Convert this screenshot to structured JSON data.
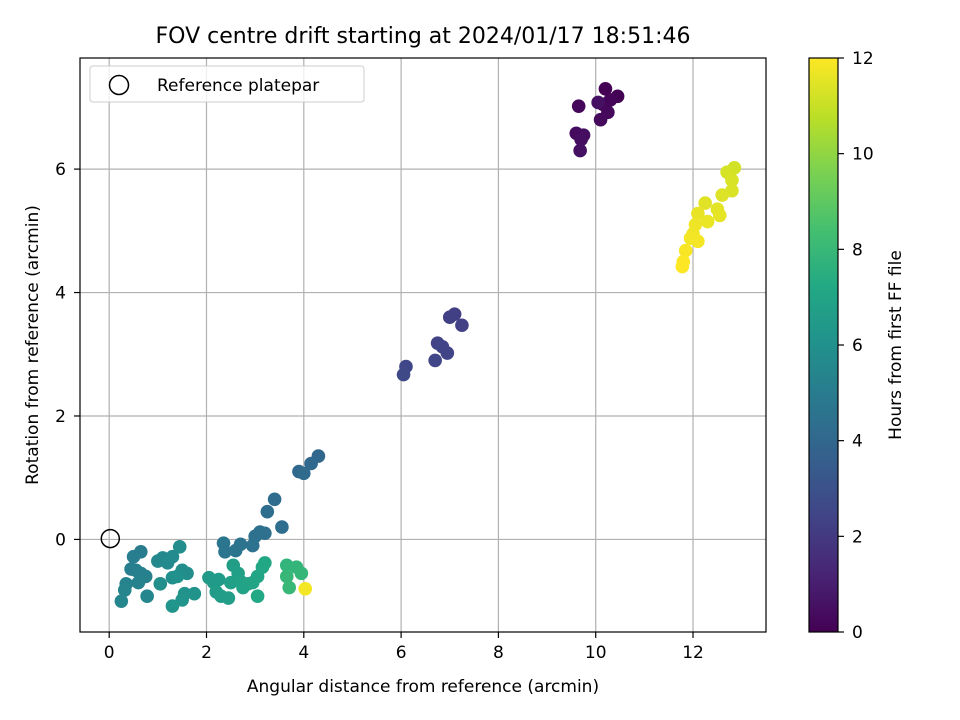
{
  "chart_data": {
    "type": "scatter",
    "title": "FOV centre drift starting at 2024/01/17 18:51:46",
    "xlabel": "Angular distance from reference (arcmin)",
    "ylabel": "Rotation from reference (arcmin)",
    "xlim": [
      -0.6,
      13.5
    ],
    "ylim": [
      -1.5,
      7.8
    ],
    "xticks": [
      0,
      2,
      4,
      6,
      8,
      10,
      12
    ],
    "yticks": [
      0,
      2,
      4,
      6
    ],
    "grid": true,
    "legend": {
      "location": "top-left",
      "entries": [
        "Reference platepar"
      ]
    },
    "reference_point": {
      "label": "Reference platepar",
      "x": 0,
      "y": 0,
      "marker": "open circle"
    },
    "colorbar": {
      "label": "Hours from first FF file",
      "colormap": "viridis",
      "range": [
        0,
        12
      ],
      "ticks": [
        0,
        2,
        4,
        6,
        8,
        10,
        12
      ]
    },
    "points": [
      {
        "x": 10.2,
        "y": 7.3,
        "c": 0.0
      },
      {
        "x": 10.45,
        "y": 7.18,
        "c": 0.05
      },
      {
        "x": 10.15,
        "y": 7.05,
        "c": 0.1
      },
      {
        "x": 10.3,
        "y": 7.12,
        "c": 0.15
      },
      {
        "x": 9.65,
        "y": 7.02,
        "c": 0.2
      },
      {
        "x": 10.25,
        "y": 6.92,
        "c": 0.25
      },
      {
        "x": 10.1,
        "y": 6.8,
        "c": 0.3
      },
      {
        "x": 9.6,
        "y": 6.58,
        "c": 0.35
      },
      {
        "x": 9.75,
        "y": 6.55,
        "c": 0.4
      },
      {
        "x": 9.7,
        "y": 6.48,
        "c": 0.45
      },
      {
        "x": 9.68,
        "y": 6.3,
        "c": 0.5
      },
      {
        "x": 10.05,
        "y": 7.08,
        "c": 0.55
      },
      {
        "x": 7.1,
        "y": 3.65,
        "c": 2.2
      },
      {
        "x": 7.0,
        "y": 3.6,
        "c": 2.25
      },
      {
        "x": 7.25,
        "y": 3.47,
        "c": 2.3
      },
      {
        "x": 6.75,
        "y": 3.18,
        "c": 2.35
      },
      {
        "x": 6.85,
        "y": 3.12,
        "c": 2.4
      },
      {
        "x": 6.95,
        "y": 3.02,
        "c": 2.45
      },
      {
        "x": 6.7,
        "y": 2.9,
        "c": 2.5
      },
      {
        "x": 6.1,
        "y": 2.8,
        "c": 2.55
      },
      {
        "x": 6.05,
        "y": 2.67,
        "c": 2.6
      },
      {
        "x": 4.3,
        "y": 1.35,
        "c": 4.0
      },
      {
        "x": 4.15,
        "y": 1.23,
        "c": 4.05
      },
      {
        "x": 3.9,
        "y": 1.1,
        "c": 4.1
      },
      {
        "x": 4.0,
        "y": 1.07,
        "c": 4.15
      },
      {
        "x": 3.4,
        "y": 0.65,
        "c": 4.2
      },
      {
        "x": 3.25,
        "y": 0.45,
        "c": 4.25
      },
      {
        "x": 3.55,
        "y": 0.2,
        "c": 4.3
      },
      {
        "x": 3.1,
        "y": 0.12,
        "c": 4.35
      },
      {
        "x": 3.2,
        "y": 0.1,
        "c": 4.4
      },
      {
        "x": 3.0,
        "y": 0.05,
        "c": 4.45
      },
      {
        "x": 2.95,
        "y": -0.1,
        "c": 4.5
      },
      {
        "x": 2.7,
        "y": -0.08,
        "c": 4.55
      },
      {
        "x": 2.6,
        "y": -0.18,
        "c": 4.6
      },
      {
        "x": 2.35,
        "y": -0.06,
        "c": 4.65
      },
      {
        "x": 2.38,
        "y": -0.2,
        "c": 4.7
      },
      {
        "x": 0.65,
        "y": -0.2,
        "c": 5.0
      },
      {
        "x": 0.5,
        "y": -0.28,
        "c": 5.05
      },
      {
        "x": 0.45,
        "y": -0.48,
        "c": 5.1
      },
      {
        "x": 0.55,
        "y": -0.5,
        "c": 5.15
      },
      {
        "x": 0.65,
        "y": -0.55,
        "c": 5.2
      },
      {
        "x": 0.75,
        "y": -0.6,
        "c": 5.25
      },
      {
        "x": 0.6,
        "y": -0.7,
        "c": 5.3
      },
      {
        "x": 0.35,
        "y": -0.72,
        "c": 5.35
      },
      {
        "x": 0.32,
        "y": -0.82,
        "c": 5.4
      },
      {
        "x": 0.78,
        "y": -0.92,
        "c": 5.45
      },
      {
        "x": 0.25,
        "y": -1.0,
        "c": 5.5
      },
      {
        "x": 1.0,
        "y": -0.35,
        "c": 5.55
      },
      {
        "x": 1.1,
        "y": -0.3,
        "c": 5.6
      },
      {
        "x": 1.2,
        "y": -0.38,
        "c": 5.65
      },
      {
        "x": 1.3,
        "y": -0.28,
        "c": 5.7
      },
      {
        "x": 1.45,
        "y": -0.12,
        "c": 5.75
      },
      {
        "x": 1.5,
        "y": -0.5,
        "c": 5.8
      },
      {
        "x": 1.6,
        "y": -0.55,
        "c": 5.85
      },
      {
        "x": 1.05,
        "y": -0.72,
        "c": 5.9
      },
      {
        "x": 1.3,
        "y": -0.62,
        "c": 5.95
      },
      {
        "x": 1.4,
        "y": -0.6,
        "c": 6.0
      },
      {
        "x": 1.55,
        "y": -0.88,
        "c": 6.05
      },
      {
        "x": 1.75,
        "y": -0.88,
        "c": 6.1
      },
      {
        "x": 1.5,
        "y": -0.98,
        "c": 6.15
      },
      {
        "x": 1.3,
        "y": -1.08,
        "c": 6.2
      },
      {
        "x": 2.05,
        "y": -0.62,
        "c": 6.4
      },
      {
        "x": 2.15,
        "y": -0.7,
        "c": 6.45
      },
      {
        "x": 2.25,
        "y": -0.65,
        "c": 6.5
      },
      {
        "x": 2.2,
        "y": -0.85,
        "c": 6.55
      },
      {
        "x": 2.3,
        "y": -0.92,
        "c": 6.6
      },
      {
        "x": 2.45,
        "y": -0.95,
        "c": 6.65
      },
      {
        "x": 2.55,
        "y": -0.42,
        "c": 6.7
      },
      {
        "x": 2.5,
        "y": -0.7,
        "c": 6.75
      },
      {
        "x": 2.65,
        "y": -0.55,
        "c": 6.8
      },
      {
        "x": 2.7,
        "y": -0.68,
        "c": 6.85
      },
      {
        "x": 2.75,
        "y": -0.78,
        "c": 6.9
      },
      {
        "x": 2.85,
        "y": -0.72,
        "c": 6.95
      },
      {
        "x": 2.95,
        "y": -0.7,
        "c": 7.0
      },
      {
        "x": 3.05,
        "y": -0.6,
        "c": 7.05
      },
      {
        "x": 3.15,
        "y": -0.45,
        "c": 7.1
      },
      {
        "x": 3.2,
        "y": -0.38,
        "c": 7.15
      },
      {
        "x": 3.05,
        "y": -0.92,
        "c": 7.2
      },
      {
        "x": 3.65,
        "y": -0.42,
        "c": 7.8
      },
      {
        "x": 3.85,
        "y": -0.45,
        "c": 7.85
      },
      {
        "x": 3.95,
        "y": -0.55,
        "c": 7.9
      },
      {
        "x": 3.65,
        "y": -0.6,
        "c": 7.95
      },
      {
        "x": 3.7,
        "y": -0.78,
        "c": 8.0
      },
      {
        "x": 4.03,
        "y": -0.8,
        "c": 11.8
      },
      {
        "x": 12.85,
        "y": 6.02,
        "c": 11.2
      },
      {
        "x": 12.7,
        "y": 5.95,
        "c": 11.25
      },
      {
        "x": 12.8,
        "y": 5.82,
        "c": 11.3
      },
      {
        "x": 12.8,
        "y": 5.65,
        "c": 11.35
      },
      {
        "x": 12.6,
        "y": 5.58,
        "c": 11.4
      },
      {
        "x": 12.25,
        "y": 5.45,
        "c": 11.45
      },
      {
        "x": 12.5,
        "y": 5.35,
        "c": 11.5
      },
      {
        "x": 12.55,
        "y": 5.25,
        "c": 11.55
      },
      {
        "x": 12.1,
        "y": 5.28,
        "c": 11.6
      },
      {
        "x": 12.3,
        "y": 5.15,
        "c": 11.65
      },
      {
        "x": 12.05,
        "y": 5.1,
        "c": 11.7
      },
      {
        "x": 12.0,
        "y": 4.95,
        "c": 11.75
      },
      {
        "x": 11.95,
        "y": 4.88,
        "c": 11.8
      },
      {
        "x": 12.1,
        "y": 4.83,
        "c": 11.85
      },
      {
        "x": 11.85,
        "y": 4.68,
        "c": 11.9
      },
      {
        "x": 11.8,
        "y": 4.5,
        "c": 11.95
      },
      {
        "x": 11.78,
        "y": 4.42,
        "c": 12.0
      }
    ]
  }
}
